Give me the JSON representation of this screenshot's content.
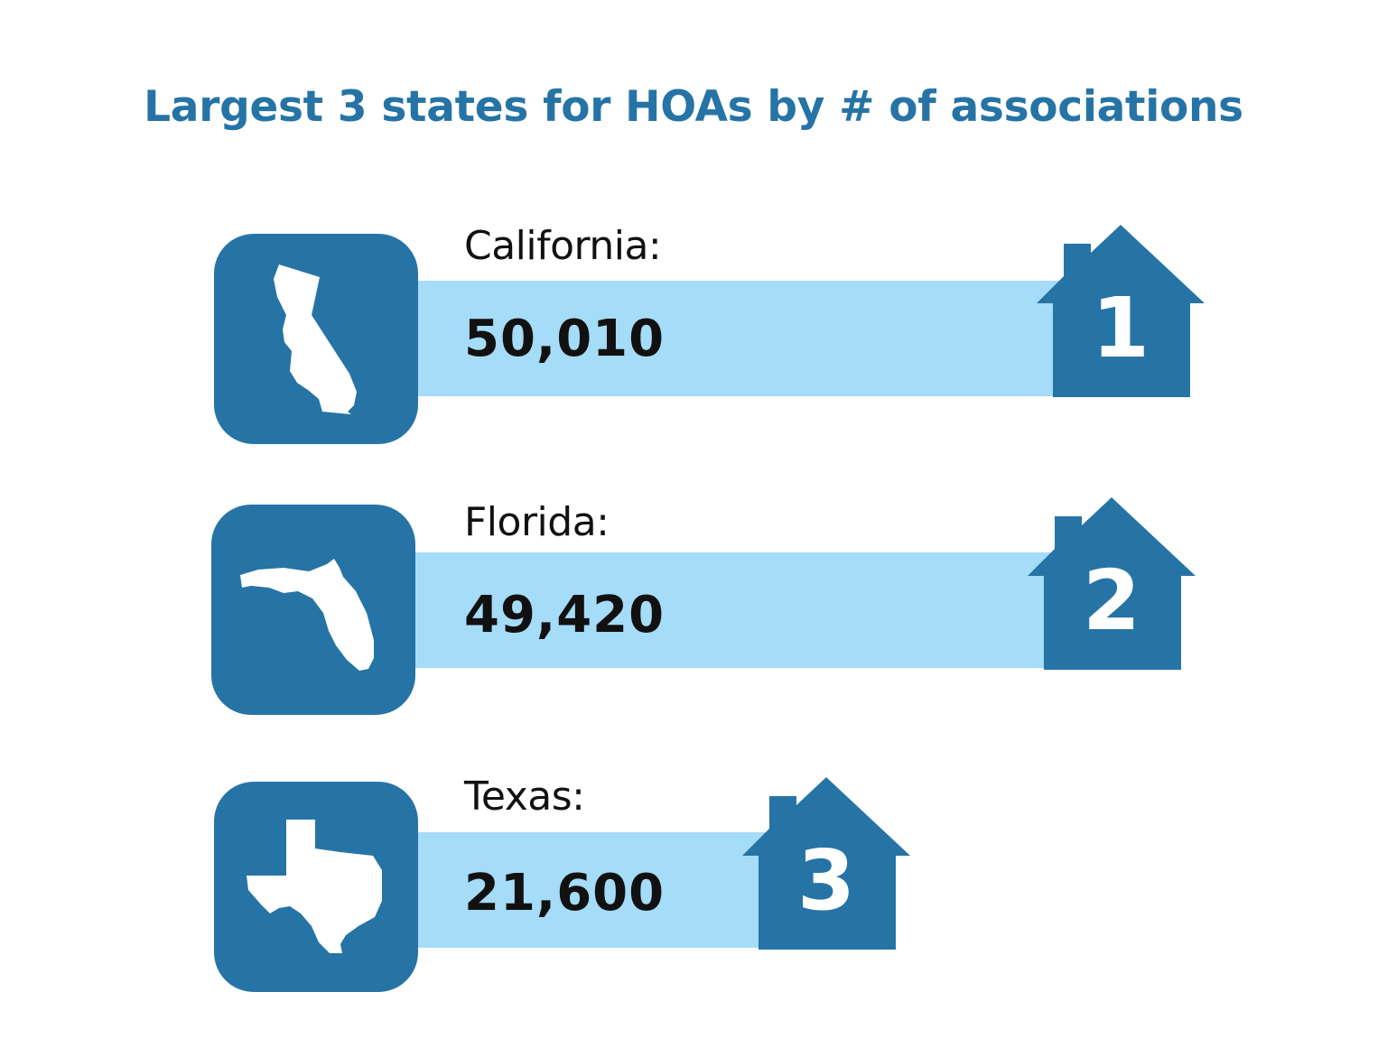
{
  "title": "Largest 3 states for HOAs by # of associations",
  "colors": {
    "title": "#2674a6",
    "tile": "#2674a6",
    "bar": "#a5dcf7",
    "house": "#2674a6",
    "text": "#111111",
    "icon": "#ffffff"
  },
  "chart_data": {
    "type": "bar",
    "orientation": "horizontal",
    "title": "Largest 3 states for HOAs by # of associations",
    "categories": [
      "California:",
      "Florida:",
      "Texas:"
    ],
    "values": [
      50010,
      49420,
      21600
    ],
    "value_labels": [
      "50,010",
      "49,420",
      "21,600"
    ],
    "ranks": [
      "1",
      "2",
      "3"
    ],
    "icons": [
      "california-icon",
      "florida-icon",
      "texas-icon"
    ],
    "grid": false
  }
}
